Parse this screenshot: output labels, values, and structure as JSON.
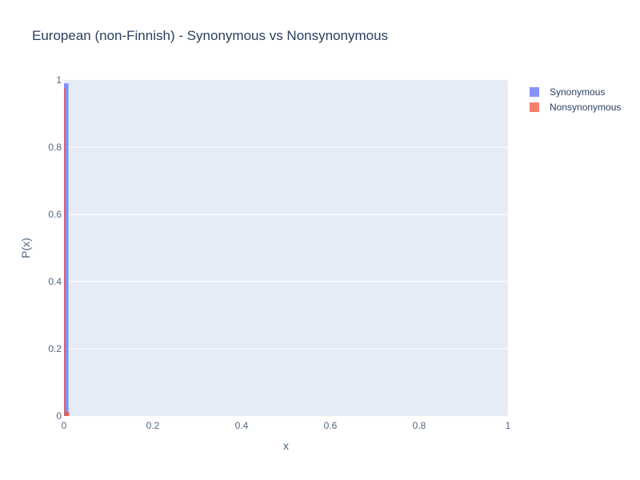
{
  "chart_data": {
    "type": "bar",
    "title": "European (non-Finnish) - Synonymous vs Nonsynonymous",
    "xlabel": "x",
    "ylabel": "P(x)",
    "xlim": [
      0,
      1
    ],
    "ylim": [
      0,
      1
    ],
    "x_ticks": [
      "0",
      "0.2",
      "0.4",
      "0.6",
      "0.8",
      "1"
    ],
    "y_ticks": [
      "0",
      "0.2",
      "0.4",
      "0.6",
      "0.8",
      "1"
    ],
    "bin_width": 0.01,
    "barmode": "overlay",
    "series": [
      {
        "name": "Synonymous",
        "color": "#636efa",
        "bins": [
          {
            "x0": 0.0,
            "x1": 0.01,
            "value": 0.99
          }
        ]
      },
      {
        "name": "Nonsynonymous",
        "color": "#ef553b",
        "bins": [
          {
            "x0": 0.0,
            "x1": 0.003,
            "value": 0.975
          },
          {
            "x0": 0.003,
            "x1": 0.012,
            "value": 0.012
          }
        ]
      }
    ],
    "legend": {
      "position": "top-right",
      "items": [
        "Synonymous",
        "Nonsynonymous"
      ]
    }
  }
}
